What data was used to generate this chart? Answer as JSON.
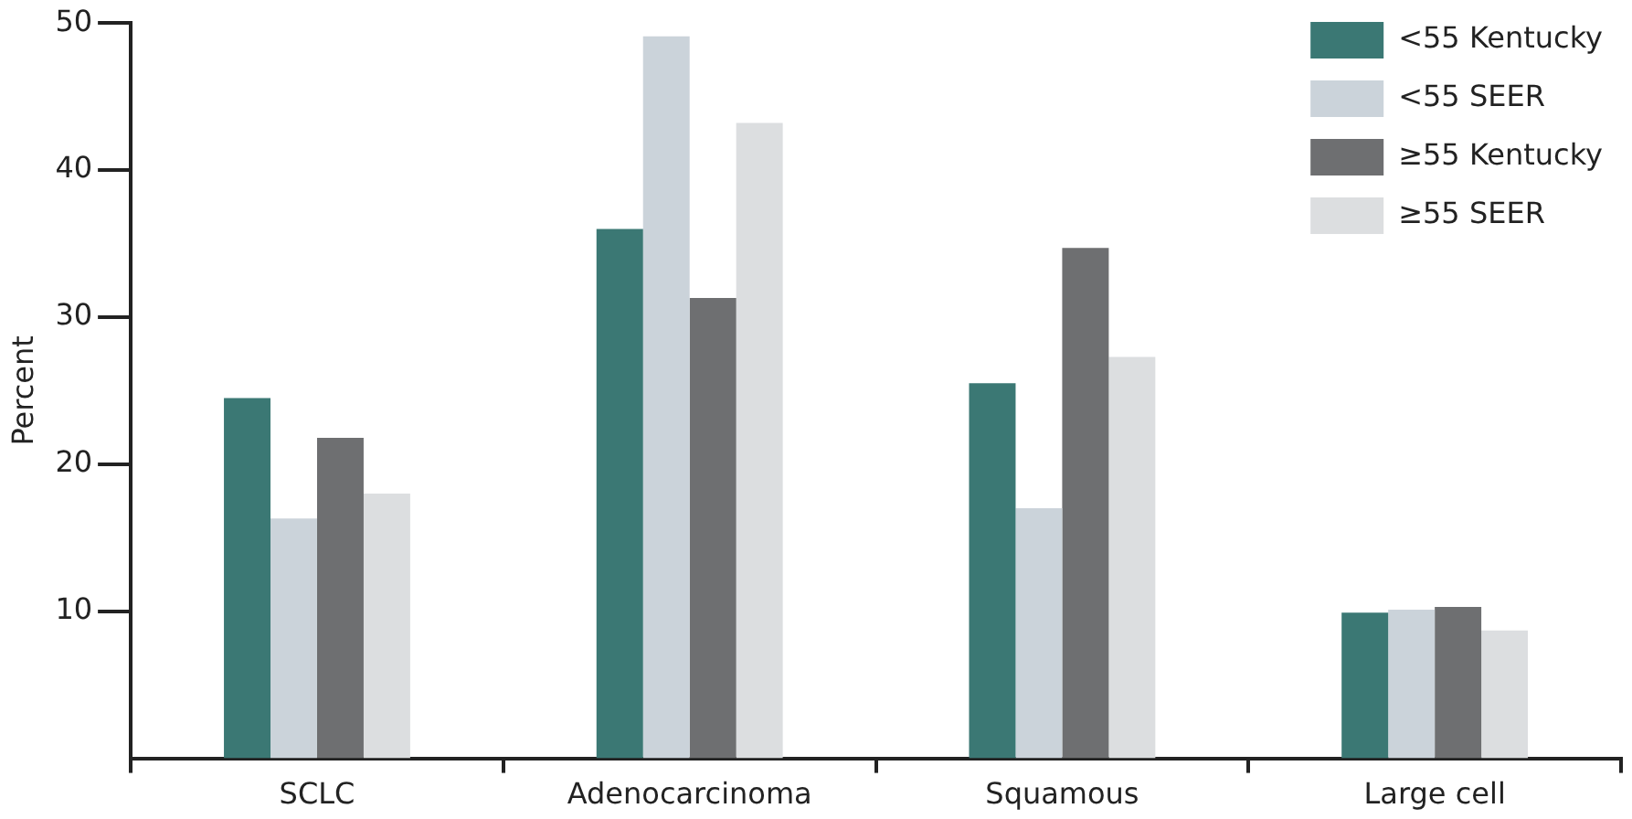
{
  "chart_data": {
    "type": "bar",
    "ylabel": "Percent",
    "categories": [
      "SCLC",
      "Adenocarcinoma",
      "Squamous",
      "Large cell"
    ],
    "series": [
      {
        "name": "<55 Kentucky",
        "color": "#3b7874",
        "values": [
          24.5,
          36.0,
          25.5,
          9.9
        ]
      },
      {
        "name": "<55 SEER",
        "color": "#cbd3da",
        "values": [
          16.3,
          49.1,
          17.0,
          10.1
        ]
      },
      {
        "name": "≥55 Kentucky",
        "color": "#6e6f71",
        "values": [
          21.8,
          31.3,
          34.7,
          10.3
        ]
      },
      {
        "name": "≥55 SEER",
        "color": "#dcdee0",
        "values": [
          18.0,
          43.2,
          27.3,
          8.7
        ]
      }
    ],
    "ylim": [
      0,
      50
    ],
    "yticks": [
      10,
      20,
      30,
      40,
      50
    ],
    "grid": false,
    "legend": "top right"
  }
}
